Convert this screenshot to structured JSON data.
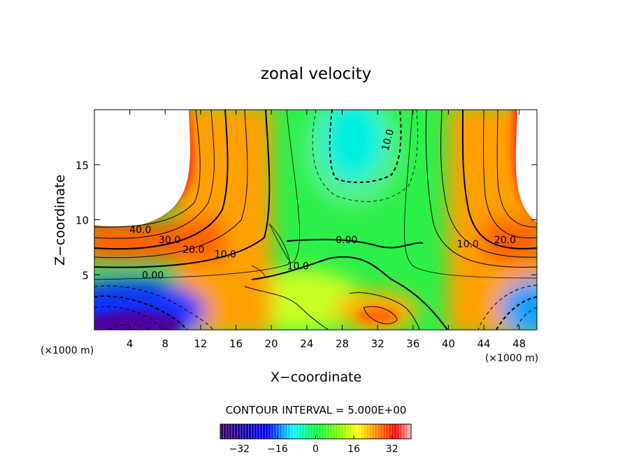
{
  "chart_data": {
    "type": "heatmap",
    "title": "zonal velocity",
    "xlabel": "X−coordinate",
    "ylabel": "Z−coordinate",
    "x_unit_label": "(×1000 m)",
    "y_unit_label": "(×1000 m)",
    "xlim": [
      0,
      50
    ],
    "ylim": [
      0,
      20
    ],
    "x_ticks": [
      "4",
      "8",
      "12",
      "16",
      "20",
      "24",
      "28",
      "32",
      "36",
      "40",
      "44",
      "48"
    ],
    "y_ticks": [
      "5",
      "10",
      "15"
    ],
    "x_tick_values": [
      4,
      8,
      12,
      16,
      20,
      24,
      28,
      32,
      36,
      40,
      44,
      48
    ],
    "y_tick_values": [
      5,
      10,
      15
    ],
    "contour_interval_text": "CONTOUR INTERVAL = 5.000E+00",
    "contour_labels": [
      {
        "text": "40.0",
        "x": 5.2,
        "z": 9.1
      },
      {
        "text": "30.0",
        "x": 8.5,
        "z": 8.2
      },
      {
        "text": "20.0",
        "x": 11.2,
        "z": 7.3
      },
      {
        "text": "10.0",
        "x": 14.8,
        "z": 6.9
      },
      {
        "text": "0.00",
        "x": 6.6,
        "z": 5.0
      },
      {
        "text": "10.0",
        "x": 23.0,
        "z": 5.8
      },
      {
        "text": "0.00",
        "x": 28.5,
        "z": 8.2
      },
      {
        "text": "10.0",
        "x": 33.5,
        "z": 17.5
      },
      {
        "text": "10.0",
        "x": 42.2,
        "z": 7.8
      },
      {
        "text": "20.0",
        "x": 46.4,
        "z": 8.2
      }
    ],
    "colorbar": {
      "range": [
        -40,
        40
      ],
      "ticks": [
        "−32",
        "−16",
        "0",
        "16",
        "32"
      ],
      "tick_values": [
        -32,
        -16,
        0,
        16,
        32
      ]
    },
    "colors": {
      "min": "#3a0060",
      "blue": "#0000ff",
      "cyan": "#00ffff",
      "green": "#00ff00",
      "yellow": "#ffff00",
      "orange": "#ff8000",
      "red": "#ff0000",
      "max": "#ffc0c0"
    }
  }
}
